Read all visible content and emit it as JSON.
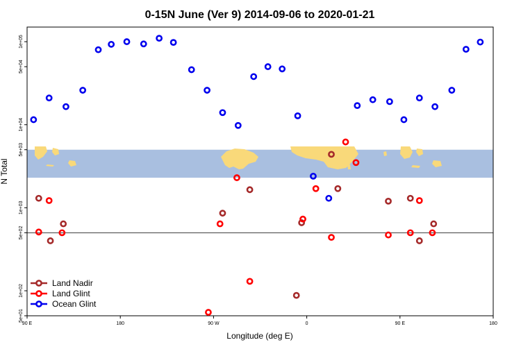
{
  "chart_data": {
    "type": "scatter",
    "title": "0-15N June (Ver 9)   2014-09-06 to 2020-01-21",
    "xlabel": "Longitude (deg E)",
    "ylabel": "N Total",
    "y_scale": "log",
    "xlim": [
      90,
      450
    ],
    "ylim": [
      50,
      150000
    ],
    "x_ticks": [
      {
        "value": 90,
        "label": "90 E"
      },
      {
        "value": 162,
        "label": "180"
      },
      {
        "value": 234,
        "label": "90 W"
      },
      {
        "value": 306,
        "label": "0"
      },
      {
        "value": 378,
        "label": "90 E"
      },
      {
        "value": 450,
        "label": "180"
      }
    ],
    "y_ticks": [
      {
        "value": 50,
        "label": "5e+01"
      },
      {
        "value": 100,
        "label": "1e+02"
      },
      {
        "value": 500,
        "label": "5e+02"
      },
      {
        "value": 1000,
        "label": "1e+03"
      },
      {
        "value": 5000,
        "label": "5e+03"
      },
      {
        "value": 10000,
        "label": "1e+04"
      },
      {
        "value": 50000,
        "label": "5e+04"
      },
      {
        "value": 100000,
        "label": "1e+05"
      }
    ],
    "reference_line_y": 500,
    "map_band": {
      "y_low": 2300,
      "y_high": 5000,
      "ocean_color": "#a9bfe0",
      "land_color": "#f9d97a"
    },
    "legend": {
      "position": "bottom-left"
    },
    "series": [
      {
        "name": "Land Nadir",
        "color": "#a52a2a",
        "points": [
          {
            "x": 99,
            "y": 1300
          },
          {
            "x": 108,
            "y": 400
          },
          {
            "x": 118,
            "y": 640
          },
          {
            "x": 241,
            "y": 860
          },
          {
            "x": 262,
            "y": 1650
          },
          {
            "x": 298,
            "y": 88
          },
          {
            "x": 302,
            "y": 660
          },
          {
            "x": 325,
            "y": 4400
          },
          {
            "x": 330,
            "y": 1700
          },
          {
            "x": 369,
            "y": 1200
          },
          {
            "x": 386,
            "y": 1300
          },
          {
            "x": 393,
            "y": 400
          },
          {
            "x": 404,
            "y": 640
          }
        ]
      },
      {
        "name": "Land Glint",
        "color": "#ff0000",
        "points": [
          {
            "x": 99,
            "y": 510
          },
          {
            "x": 107,
            "y": 1220
          },
          {
            "x": 117,
            "y": 500
          },
          {
            "x": 230,
            "y": 55
          },
          {
            "x": 239,
            "y": 640
          },
          {
            "x": 252,
            "y": 2300
          },
          {
            "x": 262,
            "y": 130
          },
          {
            "x": 303,
            "y": 730
          },
          {
            "x": 313,
            "y": 1700
          },
          {
            "x": 325,
            "y": 440
          },
          {
            "x": 336,
            "y": 6200
          },
          {
            "x": 344,
            "y": 3500
          },
          {
            "x": 369,
            "y": 470
          },
          {
            "x": 386,
            "y": 500
          },
          {
            "x": 393,
            "y": 1220
          },
          {
            "x": 403,
            "y": 500
          }
        ]
      },
      {
        "name": "Ocean Glint",
        "color": "#0000ee",
        "points": [
          {
            "x": 95,
            "y": 11500
          },
          {
            "x": 107,
            "y": 21000
          },
          {
            "x": 120,
            "y": 16500
          },
          {
            "x": 133,
            "y": 26000
          },
          {
            "x": 145,
            "y": 80000
          },
          {
            "x": 155,
            "y": 93000
          },
          {
            "x": 167,
            "y": 100000
          },
          {
            "x": 180,
            "y": 94000
          },
          {
            "x": 192,
            "y": 110000
          },
          {
            "x": 203,
            "y": 98000
          },
          {
            "x": 217,
            "y": 46000
          },
          {
            "x": 229,
            "y": 26000
          },
          {
            "x": 241,
            "y": 14000
          },
          {
            "x": 253,
            "y": 9800
          },
          {
            "x": 265,
            "y": 38000
          },
          {
            "x": 276,
            "y": 50000
          },
          {
            "x": 287,
            "y": 47000
          },
          {
            "x": 299,
            "y": 12800
          },
          {
            "x": 311,
            "y": 2400
          },
          {
            "x": 323,
            "y": 1300
          },
          {
            "x": 345,
            "y": 17000
          },
          {
            "x": 357,
            "y": 20000
          },
          {
            "x": 370,
            "y": 19000
          },
          {
            "x": 381,
            "y": 11500
          },
          {
            "x": 393,
            "y": 21000
          },
          {
            "x": 405,
            "y": 16500
          },
          {
            "x": 418,
            "y": 26000
          },
          {
            "x": 429,
            "y": 81000
          },
          {
            "x": 440,
            "y": 99000
          }
        ]
      }
    ]
  }
}
